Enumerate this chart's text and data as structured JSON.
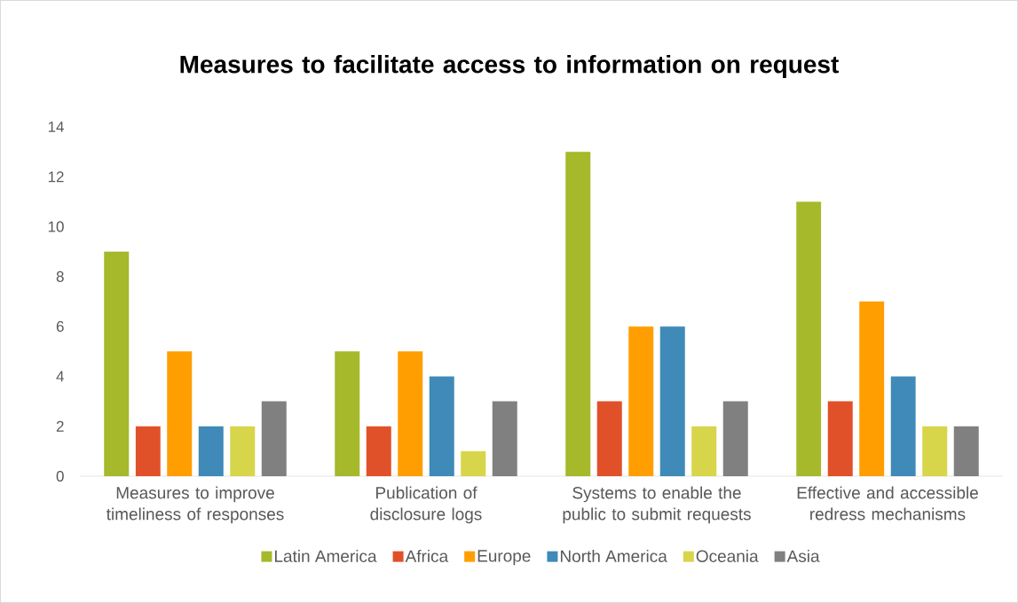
{
  "chart_data": {
    "type": "bar",
    "title": "Measures to facilitate access to information on request",
    "categories": [
      "Measures to improve timeliness of responses",
      "Publication of disclosure logs",
      "Systems to enable the public to submit requests",
      "Effective and accessible redress mechanisms"
    ],
    "series": [
      {
        "name": "Latin America",
        "color": "#a5b92a",
        "values": [
          9,
          5,
          13,
          11
        ]
      },
      {
        "name": "Africa",
        "color": "#e0512a",
        "values": [
          2,
          2,
          3,
          3
        ]
      },
      {
        "name": "Europe",
        "color": "#ff9e00",
        "values": [
          5,
          5,
          6,
          7
        ]
      },
      {
        "name": "North America",
        "color": "#3f8ab8",
        "values": [
          2,
          4,
          6,
          4
        ]
      },
      {
        "name": "Oceania",
        "color": "#d7d54a",
        "values": [
          2,
          1,
          2,
          2
        ]
      },
      {
        "name": "Asia",
        "color": "#808080",
        "values": [
          3,
          3,
          3,
          2
        ]
      }
    ],
    "ylim": [
      0,
      14
    ],
    "yticks": [
      0,
      2,
      4,
      6,
      8,
      10,
      12,
      14
    ],
    "grid": false,
    "legend": "bottom"
  }
}
